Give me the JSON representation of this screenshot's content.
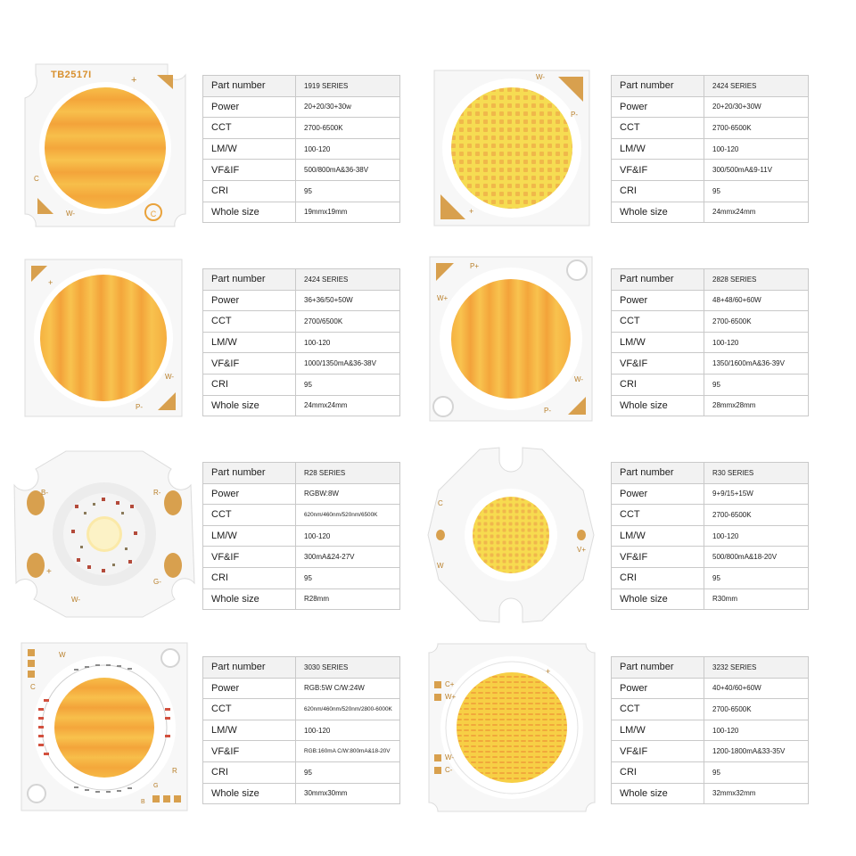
{
  "colors": {
    "chip_substrate": "#f7f7f7",
    "pad_gold": "#d8a04e",
    "led_yellow": "#f5d04a",
    "led_orange": "#f4a53a",
    "table_border": "#c9c9c9"
  },
  "row_labels": [
    "Part number",
    "Power",
    "CCT",
    "LM/W",
    "VF&IF",
    "CRI",
    "Whole size"
  ],
  "products": [
    {
      "chip": {
        "model": "TB2517I",
        "markings": [
          "+",
          "C",
          "W-"
        ],
        "icon": "logo-badge-icon"
      },
      "specs": [
        "1919 SERIES",
        "20+20/30+30w",
        "2700-6500K",
        "100-120",
        "500/800mA&36-38V",
        "95",
        "19mmx19mm"
      ]
    },
    {
      "chip": {
        "markings": [
          "W-",
          "P-",
          "+"
        ]
      },
      "specs": [
        "2424 SERIES",
        "20+20/30+30W",
        "2700-6500K",
        "100-120",
        "300/500mA&9-11V",
        "95",
        "24mmx24mm"
      ]
    },
    {
      "chip": {
        "markings": [
          "+",
          "W-",
          "P-"
        ]
      },
      "specs": [
        "2424 SERIES",
        "36+36/50+50W",
        "2700/6500K",
        "100-120",
        "1000/1350mA&36-38V",
        "95",
        "24mmx24mm"
      ]
    },
    {
      "chip": {
        "markings": [
          "P+",
          "W+",
          "W-",
          "P-"
        ]
      },
      "specs": [
        "2828 SERIES",
        "48+48/60+60W",
        "2700-6500K",
        "100-120",
        "1350/1600mA&36-39V",
        "95",
        "28mmx28mm"
      ]
    },
    {
      "chip": {
        "markings": [
          "B-",
          "R-",
          "+",
          "G-",
          "W-"
        ]
      },
      "specs": [
        "R28 SERIES",
        "RGBW:8W",
        "620nm/460nm/520nm/6500K",
        "100-120",
        "300mA&24-27V",
        "95",
        "R28mm"
      ]
    },
    {
      "chip": {
        "markings": [
          "C",
          "W",
          "V+"
        ]
      },
      "specs": [
        "R30 SERIES",
        "9+9/15+15W",
        "2700-6500K",
        "100-120",
        "500/800mA&18-20V",
        "95",
        "R30mm"
      ]
    },
    {
      "chip": {
        "markings": [
          "W",
          "C",
          "R",
          "G",
          "B"
        ]
      },
      "specs": [
        "3030 SERIES",
        "RGB:5W C/W:24W",
        "620nm/460nm/520nm/2800-6000K",
        "100-120",
        "RGB:160mA C/W:800mA&18-20V",
        "95",
        "30mmx30mm"
      ]
    },
    {
      "chip": {
        "markings": [
          "C+",
          "W+",
          "+",
          "W-",
          "C-"
        ]
      },
      "specs": [
        "3232 SERIES",
        "40+40/60+60W",
        "2700-6500K",
        "100-120",
        "1200-1800mA&33-35V",
        "95",
        "32mmx32mm"
      ]
    }
  ]
}
